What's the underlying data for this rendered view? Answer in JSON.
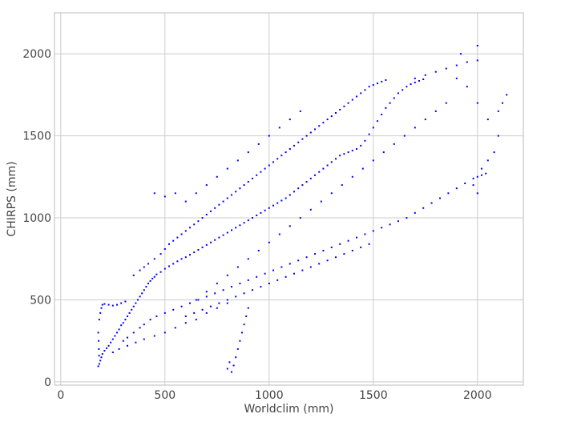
{
  "chart_data": {
    "type": "scatter",
    "title": "",
    "xlabel": "Worldclim (mm)",
    "ylabel": "CHIRPS (mm)",
    "xlim": [
      -30,
      2220
    ],
    "ylim": [
      -20,
      2250
    ],
    "xticks": [
      0,
      500,
      1000,
      1500,
      2000
    ],
    "yticks": [
      0,
      500,
      1000,
      1500,
      2000
    ],
    "grid": true,
    "marker_color": "#0000ff",
    "series": [
      {
        "points": [
          [
            180,
            95
          ],
          [
            185,
            110
          ],
          [
            190,
            130
          ],
          [
            195,
            150
          ],
          [
            200,
            170
          ],
          [
            210,
            190
          ],
          [
            220,
            205
          ],
          [
            230,
            220
          ],
          [
            240,
            240
          ],
          [
            250,
            260
          ],
          [
            260,
            280
          ],
          [
            270,
            300
          ],
          [
            280,
            320
          ],
          [
            290,
            345
          ],
          [
            300,
            360
          ],
          [
            310,
            380
          ],
          [
            320,
            400
          ],
          [
            330,
            420
          ],
          [
            340,
            440
          ],
          [
            350,
            460
          ],
          [
            360,
            480
          ],
          [
            370,
            500
          ],
          [
            380,
            520
          ],
          [
            390,
            540
          ],
          [
            400,
            560
          ],
          [
            410,
            580
          ],
          [
            420,
            600
          ],
          [
            430,
            615
          ],
          [
            440,
            630
          ],
          [
            450,
            640
          ],
          [
            460,
            655
          ],
          [
            480,
            670
          ],
          [
            500,
            690
          ],
          [
            520,
            705
          ],
          [
            540,
            720
          ],
          [
            560,
            735
          ],
          [
            580,
            750
          ],
          [
            600,
            760
          ],
          [
            620,
            775
          ],
          [
            640,
            790
          ],
          [
            660,
            805
          ],
          [
            680,
            820
          ],
          [
            700,
            835
          ],
          [
            720,
            850
          ],
          [
            740,
            865
          ],
          [
            760,
            880
          ],
          [
            780,
            895
          ],
          [
            800,
            910
          ],
          [
            820,
            925
          ],
          [
            840,
            940
          ],
          [
            860,
            955
          ],
          [
            880,
            970
          ],
          [
            900,
            985
          ],
          [
            920,
            1000
          ],
          [
            940,
            1015
          ],
          [
            960,
            1030
          ],
          [
            980,
            1045
          ],
          [
            1000,
            1060
          ],
          [
            1020,
            1075
          ],
          [
            1040,
            1090
          ],
          [
            1060,
            1105
          ],
          [
            1080,
            1120
          ],
          [
            1100,
            1140
          ],
          [
            1120,
            1160
          ],
          [
            1140,
            1180
          ],
          [
            1160,
            1200
          ],
          [
            1180,
            1220
          ],
          [
            1200,
            1240
          ],
          [
            1220,
            1260
          ],
          [
            1240,
            1280
          ],
          [
            1260,
            1300
          ],
          [
            1280,
            1320
          ],
          [
            1300,
            1340
          ],
          [
            1320,
            1360
          ],
          [
            1340,
            1380
          ],
          [
            1360,
            1390
          ],
          [
            1380,
            1400
          ],
          [
            1400,
            1410
          ],
          [
            1420,
            1420
          ],
          [
            1440,
            1440
          ],
          [
            1460,
            1470
          ],
          [
            1480,
            1510
          ],
          [
            1500,
            1550
          ],
          [
            1520,
            1590
          ],
          [
            1540,
            1630
          ],
          [
            1560,
            1670
          ],
          [
            1580,
            1700
          ],
          [
            1600,
            1730
          ],
          [
            1620,
            1760
          ],
          [
            1640,
            1780
          ],
          [
            1660,
            1800
          ],
          [
            1680,
            1815
          ],
          [
            1700,
            1825
          ],
          [
            1720,
            1835
          ],
          [
            1740,
            1845
          ],
          [
            185,
            380
          ],
          [
            190,
            420
          ],
          [
            195,
            450
          ],
          [
            200,
            470
          ],
          [
            210,
            475
          ],
          [
            230,
            470
          ],
          [
            250,
            465
          ],
          [
            270,
            470
          ],
          [
            290,
            480
          ],
          [
            310,
            490
          ],
          [
            180,
            300
          ],
          [
            182,
            250
          ],
          [
            183,
            200
          ],
          [
            184,
            160
          ],
          [
            300,
            250
          ],
          [
            320,
            270
          ],
          [
            350,
            300
          ],
          [
            380,
            330
          ],
          [
            400,
            350
          ],
          [
            430,
            380
          ],
          [
            460,
            400
          ],
          [
            500,
            420
          ],
          [
            540,
            440
          ],
          [
            580,
            460
          ],
          [
            620,
            480
          ],
          [
            660,
            500
          ],
          [
            700,
            520
          ],
          [
            740,
            540
          ],
          [
            780,
            560
          ],
          [
            820,
            580
          ],
          [
            860,
            600
          ],
          [
            900,
            620
          ],
          [
            940,
            640
          ],
          [
            980,
            660
          ],
          [
            1020,
            680
          ],
          [
            1060,
            700
          ],
          [
            1100,
            720
          ],
          [
            1140,
            740
          ],
          [
            1180,
            760
          ],
          [
            1220,
            780
          ],
          [
            1260,
            800
          ],
          [
            1300,
            820
          ],
          [
            1340,
            840
          ],
          [
            1380,
            860
          ],
          [
            1420,
            880
          ],
          [
            1460,
            900
          ],
          [
            1500,
            920
          ],
          [
            1540,
            940
          ],
          [
            1580,
            960
          ],
          [
            1620,
            980
          ],
          [
            1660,
            1000
          ],
          [
            1700,
            1030
          ],
          [
            1740,
            1060
          ],
          [
            1780,
            1090
          ],
          [
            1820,
            1120
          ],
          [
            1860,
            1150
          ],
          [
            1900,
            1180
          ],
          [
            1940,
            1210
          ],
          [
            1980,
            1240
          ],
          [
            2020,
            1260
          ],
          [
            2040,
            1270
          ],
          [
            350,
            650
          ],
          [
            380,
            680
          ],
          [
            400,
            700
          ],
          [
            420,
            720
          ],
          [
            450,
            750
          ],
          [
            480,
            780
          ],
          [
            500,
            810
          ],
          [
            520,
            840
          ],
          [
            540,
            860
          ],
          [
            560,
            880
          ],
          [
            580,
            900
          ],
          [
            600,
            920
          ],
          [
            620,
            940
          ],
          [
            640,
            960
          ],
          [
            660,
            980
          ],
          [
            680,
            1000
          ],
          [
            700,
            1020
          ],
          [
            720,
            1040
          ],
          [
            740,
            1060
          ],
          [
            760,
            1080
          ],
          [
            780,
            1100
          ],
          [
            800,
            1120
          ],
          [
            820,
            1140
          ],
          [
            840,
            1160
          ],
          [
            860,
            1180
          ],
          [
            880,
            1200
          ],
          [
            900,
            1220
          ],
          [
            920,
            1240
          ],
          [
            940,
            1260
          ],
          [
            960,
            1280
          ],
          [
            980,
            1300
          ],
          [
            1000,
            1320
          ],
          [
            1020,
            1340
          ],
          [
            1040,
            1360
          ],
          [
            1060,
            1380
          ],
          [
            1080,
            1400
          ],
          [
            1100,
            1420
          ],
          [
            1120,
            1440
          ],
          [
            1140,
            1460
          ],
          [
            1160,
            1480
          ],
          [
            1180,
            1500
          ],
          [
            1200,
            1520
          ],
          [
            1220,
            1540
          ],
          [
            1240,
            1560
          ],
          [
            1260,
            1580
          ],
          [
            1280,
            1600
          ],
          [
            1300,
            1620
          ],
          [
            1320,
            1640
          ],
          [
            1340,
            1660
          ],
          [
            1360,
            1680
          ],
          [
            1380,
            1700
          ],
          [
            1400,
            1720
          ],
          [
            1420,
            1740
          ],
          [
            1440,
            1760
          ],
          [
            1460,
            1780
          ],
          [
            1480,
            1800
          ],
          [
            1500,
            1810
          ],
          [
            1520,
            1820
          ],
          [
            1540,
            1830
          ],
          [
            1560,
            1840
          ],
          [
            600,
            400
          ],
          [
            640,
            420
          ],
          [
            680,
            440
          ],
          [
            720,
            460
          ],
          [
            760,
            480
          ],
          [
            800,
            500
          ],
          [
            840,
            520
          ],
          [
            880,
            540
          ],
          [
            920,
            560
          ],
          [
            960,
            580
          ],
          [
            1000,
            600
          ],
          [
            1040,
            620
          ],
          [
            1080,
            640
          ],
          [
            1120,
            660
          ],
          [
            1160,
            680
          ],
          [
            1200,
            700
          ],
          [
            1240,
            720
          ],
          [
            1280,
            740
          ],
          [
            1320,
            760
          ],
          [
            1360,
            780
          ],
          [
            1400,
            800
          ],
          [
            1440,
            820
          ],
          [
            1480,
            840
          ],
          [
            820,
            60
          ],
          [
            830,
            100
          ],
          [
            840,
            150
          ],
          [
            850,
            200
          ],
          [
            860,
            250
          ],
          [
            870,
            300
          ],
          [
            880,
            350
          ],
          [
            890,
            400
          ],
          [
            900,
            450
          ],
          [
            800,
            80
          ],
          [
            810,
            120
          ],
          [
            1700,
            1850
          ],
          [
            1750,
            1870
          ],
          [
            1800,
            1890
          ],
          [
            1850,
            1910
          ],
          [
            1900,
            1930
          ],
          [
            1950,
            1950
          ],
          [
            2000,
            1960
          ],
          [
            1920,
            2000
          ],
          [
            2000,
            2050
          ],
          [
            1900,
            1850
          ],
          [
            1950,
            1800
          ],
          [
            2000,
            1700
          ],
          [
            2050,
            1600
          ],
          [
            2100,
            1500
          ],
          [
            2080,
            1400
          ],
          [
            2050,
            1350
          ],
          [
            2020,
            1300
          ],
          [
            2000,
            1250
          ],
          [
            1980,
            1200
          ],
          [
            2000,
            1150
          ],
          [
            2100,
            1650
          ],
          [
            2120,
            1700
          ],
          [
            2140,
            1750
          ],
          [
            1850,
            1700
          ],
          [
            1800,
            1650
          ],
          [
            1750,
            1600
          ],
          [
            1700,
            1550
          ],
          [
            1650,
            1500
          ],
          [
            1600,
            1450
          ],
          [
            1550,
            1400
          ],
          [
            1500,
            1350
          ],
          [
            1450,
            1300
          ],
          [
            1400,
            1250
          ],
          [
            1350,
            1200
          ],
          [
            1300,
            1150
          ],
          [
            1250,
            1100
          ],
          [
            1200,
            1050
          ],
          [
            1150,
            1000
          ],
          [
            1100,
            950
          ],
          [
            1050,
            900
          ],
          [
            1000,
            850
          ],
          [
            950,
            800
          ],
          [
            900,
            750
          ],
          [
            850,
            700
          ],
          [
            800,
            650
          ],
          [
            750,
            600
          ],
          [
            700,
            550
          ],
          [
            650,
            500
          ],
          [
            250,
            180
          ],
          [
            280,
            200
          ],
          [
            320,
            220
          ],
          [
            360,
            240
          ],
          [
            400,
            260
          ],
          [
            450,
            280
          ],
          [
            500,
            300
          ],
          [
            550,
            330
          ],
          [
            600,
            360
          ],
          [
            650,
            380
          ],
          [
            700,
            420
          ],
          [
            750,
            450
          ],
          [
            800,
            480
          ],
          [
            450,
            1150
          ],
          [
            500,
            1130
          ],
          [
            550,
            1150
          ],
          [
            600,
            1100
          ],
          [
            650,
            1150
          ],
          [
            700,
            1200
          ],
          [
            750,
            1250
          ],
          [
            800,
            1300
          ],
          [
            850,
            1350
          ],
          [
            900,
            1400
          ],
          [
            950,
            1450
          ],
          [
            1000,
            1500
          ],
          [
            1050,
            1550
          ],
          [
            1100,
            1600
          ],
          [
            1150,
            1650
          ]
        ]
      }
    ]
  }
}
